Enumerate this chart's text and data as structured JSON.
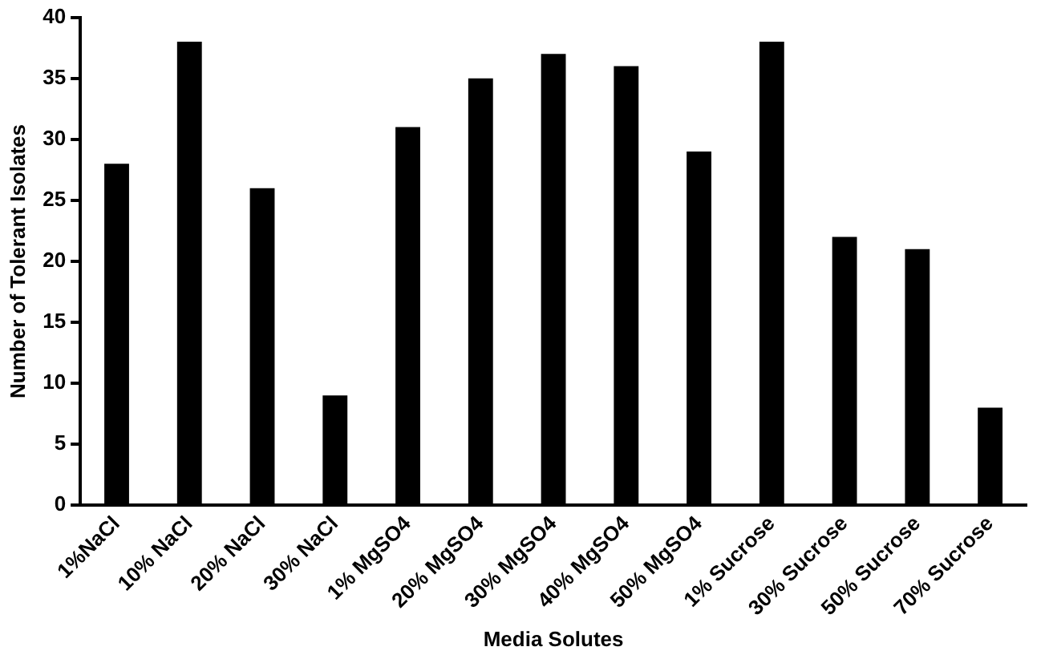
{
  "chart_data": {
    "type": "bar",
    "xlabel": "Media Solutes",
    "ylabel": "Number of Tolerant Isolates",
    "categories": [
      "1%NaCl",
      "10% NaCl",
      "20% NaCl",
      "30% NaCl",
      "1% MgSO4",
      "20% MgSO4",
      "30% MgSO4",
      "40% MgSO4",
      "50% MgSO4",
      "1% Sucrose",
      "30% Sucrose",
      "50% Sucrose",
      "70% Sucrose"
    ],
    "values": [
      28,
      38,
      26,
      9,
      31,
      35,
      37,
      36,
      29,
      38,
      22,
      21,
      8
    ],
    "color": "#000000",
    "ylim": [
      0,
      40
    ],
    "yticks": [
      0,
      5,
      10,
      15,
      20,
      25,
      30,
      35,
      40
    ],
    "grid": false,
    "legend": false
  }
}
